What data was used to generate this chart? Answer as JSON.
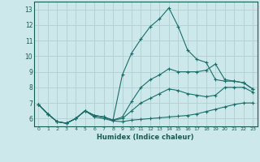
{
  "xlabel": "Humidex (Indice chaleur)",
  "ylabel": "",
  "background_color": "#cce8ea",
  "grid_color": "#b0d0d3",
  "line_color": "#1a6e6a",
  "xlim": [
    -0.5,
    23.5
  ],
  "ylim": [
    5.5,
    13.5
  ],
  "xticks": [
    0,
    1,
    2,
    3,
    4,
    5,
    6,
    7,
    8,
    9,
    10,
    11,
    12,
    13,
    14,
    15,
    16,
    17,
    18,
    19,
    20,
    21,
    22,
    23
  ],
  "yticks": [
    6,
    7,
    8,
    9,
    10,
    11,
    12,
    13
  ],
  "lines": [
    {
      "x": [
        0,
        1,
        2,
        3,
        4,
        5,
        6,
        7,
        8,
        9,
        10,
        11,
        12,
        13,
        14,
        15,
        16,
        17,
        18,
        19,
        20,
        21,
        22,
        23
      ],
      "y": [
        6.9,
        6.3,
        5.8,
        5.7,
        6.0,
        6.5,
        6.1,
        6.0,
        5.85,
        5.8,
        5.9,
        5.95,
        6.0,
        6.05,
        6.1,
        6.15,
        6.2,
        6.3,
        6.45,
        6.6,
        6.75,
        6.9,
        7.0,
        7.0
      ]
    },
    {
      "x": [
        0,
        1,
        2,
        3,
        4,
        5,
        6,
        7,
        8,
        9,
        10,
        11,
        12,
        13,
        14,
        15,
        16,
        17,
        18,
        19,
        20,
        21,
        22,
        23
      ],
      "y": [
        6.9,
        6.3,
        5.8,
        5.7,
        6.0,
        6.5,
        6.2,
        6.1,
        5.9,
        6.0,
        6.5,
        7.0,
        7.3,
        7.6,
        7.9,
        7.8,
        7.6,
        7.5,
        7.4,
        7.5,
        8.0,
        8.0,
        8.0,
        7.7
      ]
    },
    {
      "x": [
        0,
        1,
        2,
        3,
        4,
        5,
        6,
        7,
        8,
        9,
        10,
        11,
        12,
        13,
        14,
        15,
        16,
        17,
        18,
        19,
        20,
        21,
        22,
        23
      ],
      "y": [
        6.9,
        6.3,
        5.8,
        5.7,
        6.0,
        6.5,
        6.2,
        6.1,
        5.9,
        6.1,
        7.1,
        8.0,
        8.5,
        8.8,
        9.2,
        9.0,
        9.0,
        9.0,
        9.1,
        9.5,
        8.5,
        8.4,
        8.3,
        7.9
      ]
    },
    {
      "x": [
        0,
        1,
        2,
        3,
        4,
        5,
        6,
        7,
        8,
        9,
        10,
        11,
        12,
        13,
        14,
        15,
        16,
        17,
        18,
        19,
        20,
        21,
        22,
        23
      ],
      "y": [
        6.9,
        6.3,
        5.8,
        5.7,
        6.0,
        6.5,
        6.2,
        6.1,
        5.9,
        8.8,
        10.2,
        11.1,
        11.9,
        12.4,
        13.1,
        11.9,
        10.4,
        9.8,
        9.6,
        8.5,
        8.4,
        8.4,
        8.3,
        7.9
      ]
    }
  ]
}
